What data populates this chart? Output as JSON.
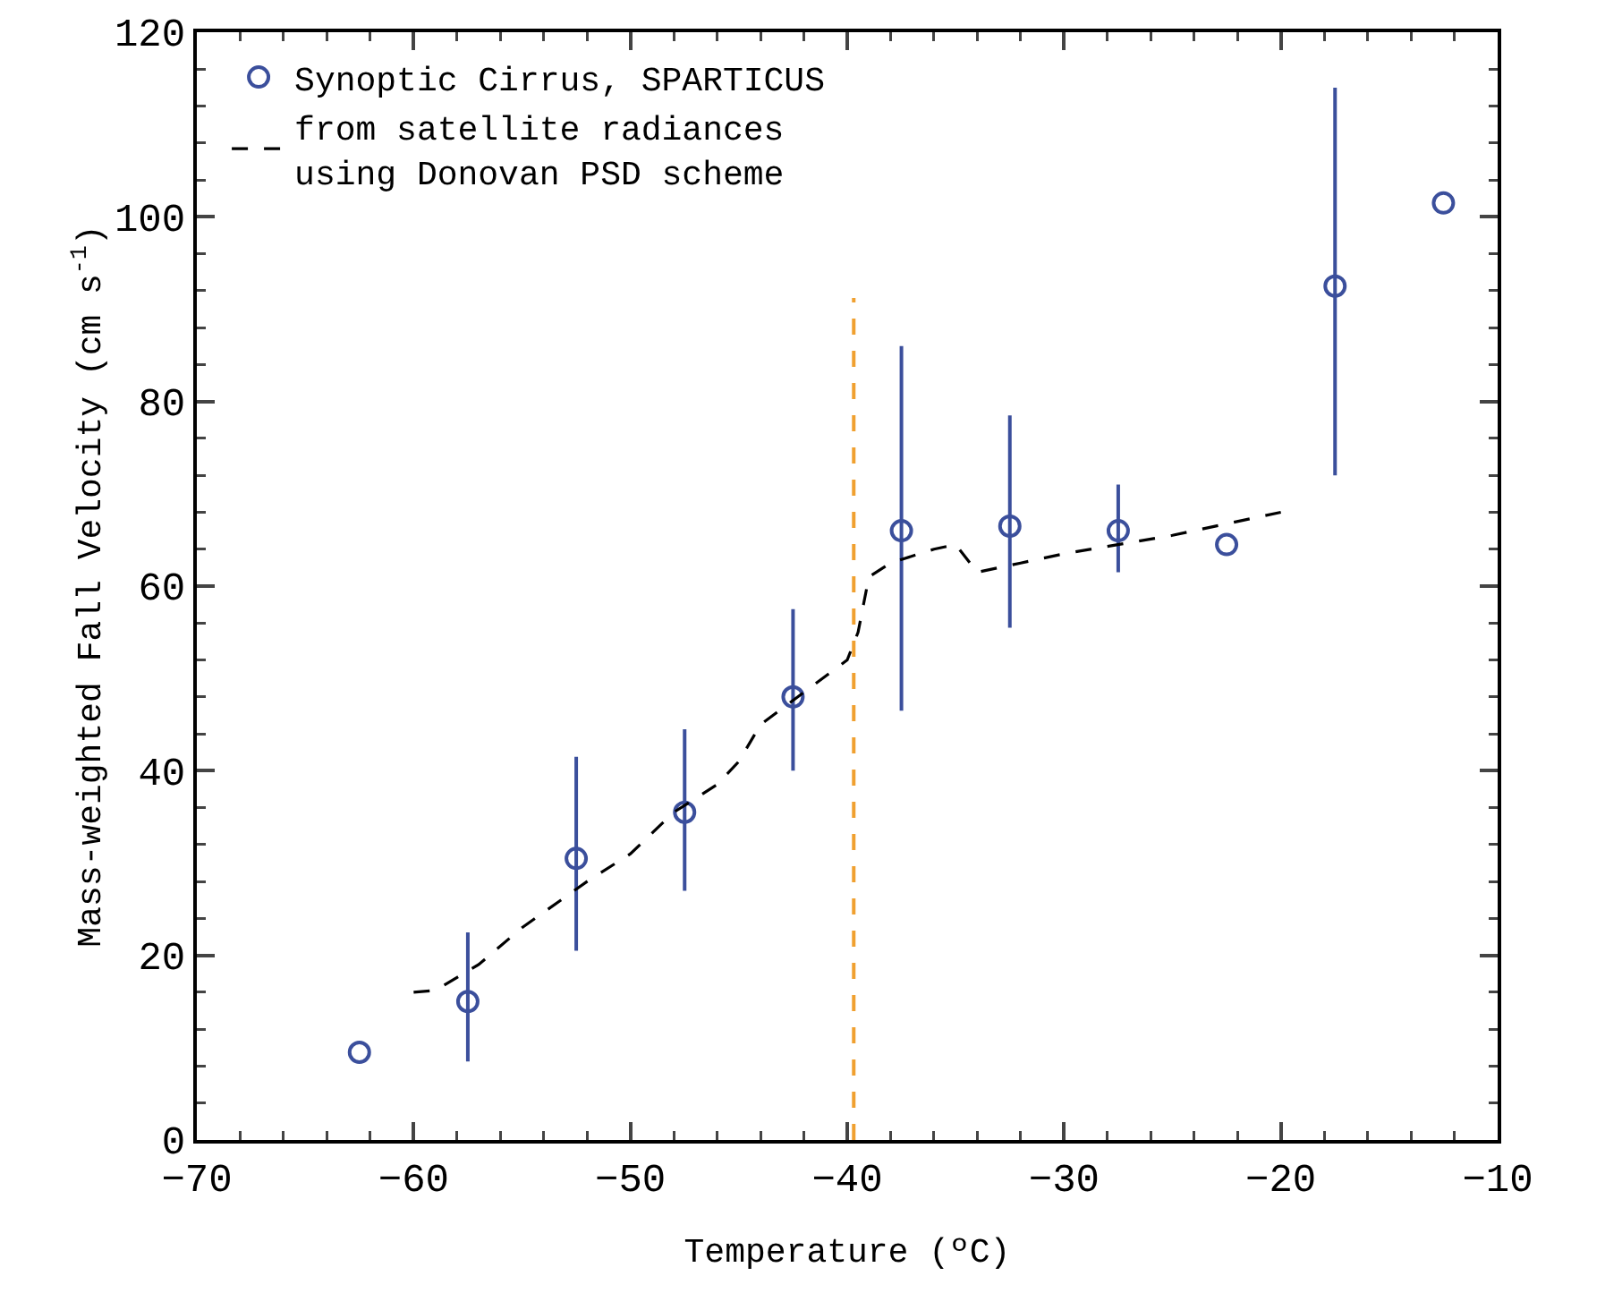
{
  "chart_data": {
    "type": "scatter",
    "xlabel": "Temperature (ºC)",
    "ylabel": "Mass-weighted Fall Velocity (cm s$^{-1}$)",
    "xlim": [
      -70,
      -10
    ],
    "xticks": [
      -70,
      -60,
      -50,
      -40,
      -30,
      -20,
      -10
    ],
    "ylim": [
      0,
      120
    ],
    "yticks": [
      0,
      20,
      40,
      60,
      80,
      100,
      120
    ],
    "grid": false,
    "legend": "top left",
    "tick_labels": true,
    "series": [
      {
        "name": "Synoptic Cirrus, SPARTICUS",
        "marker": "circle",
        "color": "#3b4f9c",
        "x": [
          -62.5,
          -57.5,
          -52.5,
          -47.5,
          -42.5,
          -37.5,
          -32.5,
          -27.5,
          -22.5,
          -17.5,
          -12.5
        ],
        "values": [
          9.5,
          15,
          30.5,
          35.5,
          48,
          66,
          66.5,
          66,
          64.5,
          92.5,
          101.5
        ],
        "errors": [
          null,
          [
            8.5,
            22.5
          ],
          [
            20.5,
            41.5
          ],
          [
            27,
            44.5
          ],
          [
            40,
            57.5
          ],
          [
            46.5,
            86
          ],
          [
            55.5,
            78.5
          ],
          [
            61.5,
            71
          ],
          null,
          [
            72,
            114
          ],
          null
        ]
      },
      {
        "name": "from satellite radiances\nusing Donovan PSD scheme",
        "type": "line",
        "line_style": "dashed",
        "marker": "none",
        "color": "#000000",
        "x": [
          -60,
          -59,
          -57,
          -55,
          -52,
          -50,
          -48,
          -46,
          -45,
          -44,
          -42,
          -40,
          -39.5,
          -39,
          -38,
          -36,
          -35,
          -34,
          -32,
          -30,
          -25,
          -20
        ],
        "values": [
          16,
          16.2,
          19,
          23,
          28,
          31,
          35.5,
          38.5,
          41,
          45,
          48.5,
          52,
          55,
          61,
          62.5,
          64,
          64.5,
          61.5,
          62.5,
          63.5,
          65.5,
          68
        ]
      }
    ],
    "ref_lines": [
      {
        "axis": "x",
        "value": -39.7,
        "color": "#f0a030",
        "line_style": "dashed"
      }
    ]
  }
}
